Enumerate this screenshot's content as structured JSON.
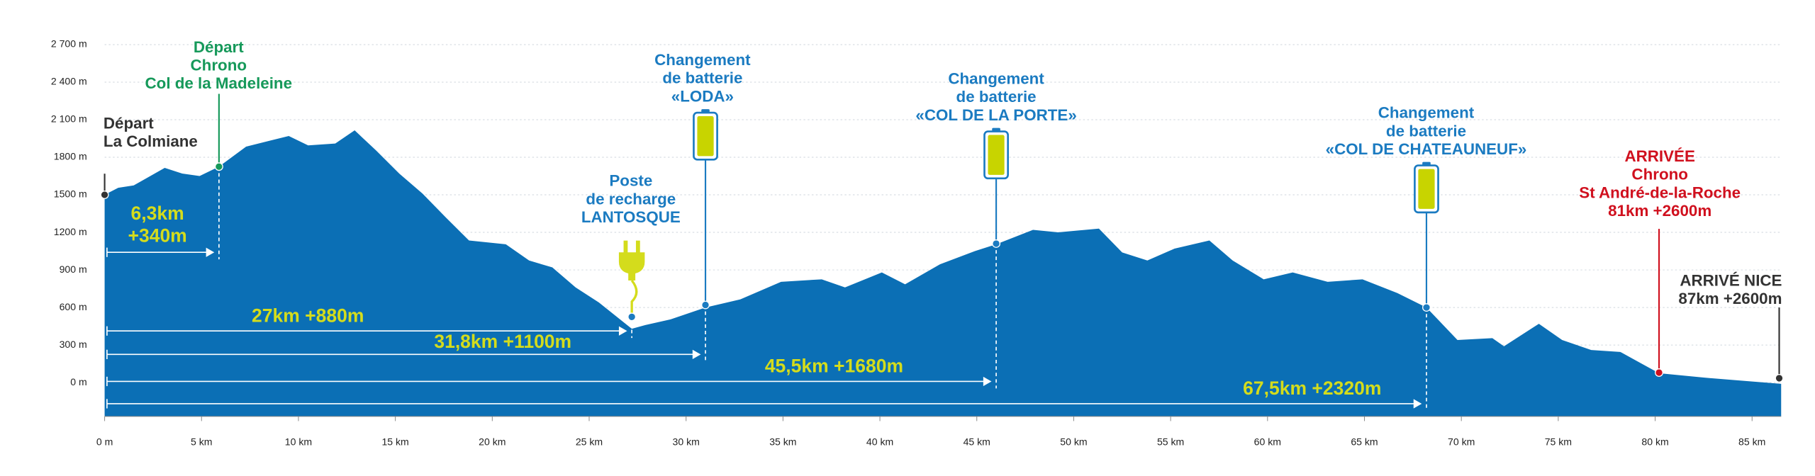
{
  "chart_data": {
    "type": "area",
    "x": [
      0,
      0.7,
      1.5,
      3.1,
      4,
      4.9,
      5.9,
      7.3,
      9.5,
      10.5,
      11.9,
      12.9,
      14,
      15.2,
      16.4,
      17.6,
      18.8,
      20.7,
      21.9,
      23.1,
      24.3,
      25.5,
      27.2,
      27.9,
      29.2,
      31,
      32.8,
      34.9,
      37,
      38.2,
      40.1,
      41.3,
      43.1,
      44.9,
      46,
      47.9,
      49.2,
      51.3,
      52.5,
      53.8,
      55.2,
      57,
      58.2,
      59.8,
      61.3,
      63.1,
      64.9,
      66.7,
      68.2,
      69.8,
      71.6,
      72.2,
      74,
      75.2,
      76.7,
      78.2,
      80.2,
      82.5,
      84.9,
      86.5
    ],
    "y": [
      1500,
      1556,
      1575,
      1715,
      1670,
      1650,
      1725,
      1885,
      1970,
      1895,
      1910,
      2015,
      1855,
      1670,
      1510,
      1320,
      1135,
      1105,
      975,
      920,
      760,
      640,
      430,
      460,
      505,
      600,
      665,
      805,
      825,
      760,
      880,
      785,
      945,
      1050,
      1105,
      1220,
      1200,
      1230,
      1040,
      975,
      1070,
      1135,
      975,
      825,
      880,
      805,
      825,
      715,
      600,
      340,
      355,
      290,
      470,
      340,
      260,
      245,
      75,
      40,
      10,
      -10
    ],
    "color": "#0b6fb5",
    "xlim": [
      0,
      86.5
    ],
    "ylim": [
      -270,
      2700
    ],
    "grid": true,
    "xticks": [
      {
        "value": 0,
        "label": "0 m"
      },
      {
        "value": 5,
        "label": "5 km"
      },
      {
        "value": 10,
        "label": "10 km"
      },
      {
        "value": 15,
        "label": "15 km"
      },
      {
        "value": 20,
        "label": "20 km"
      },
      {
        "value": 25,
        "label": "25 km"
      },
      {
        "value": 30,
        "label": "30 km"
      },
      {
        "value": 35,
        "label": "35 km"
      },
      {
        "value": 40,
        "label": "40 km"
      },
      {
        "value": 45,
        "label": "45 km"
      },
      {
        "value": 50,
        "label": "50 km"
      },
      {
        "value": 55,
        "label": "55 km"
      },
      {
        "value": 60,
        "label": "60 km"
      },
      {
        "value": 65,
        "label": "65 km"
      },
      {
        "value": 70,
        "label": "70 km"
      },
      {
        "value": 75,
        "label": "75 km"
      },
      {
        "value": 80,
        "label": "80 km"
      },
      {
        "value": 85,
        "label": "85 km"
      }
    ],
    "yticks": [
      {
        "value": 0,
        "label": "0 m"
      },
      {
        "value": 300,
        "label": "300 m"
      },
      {
        "value": 600,
        "label": "600 m"
      },
      {
        "value": 900,
        "label": "900 m"
      },
      {
        "value": 1200,
        "label": "1200 m"
      },
      {
        "value": 1500,
        "label": "1500 m"
      },
      {
        "value": 1800,
        "label": "1800 m"
      },
      {
        "value": 2100,
        "label": "2 100 m"
      },
      {
        "value": 2400,
        "label": "2 400 m"
      },
      {
        "value": 2700,
        "label": "2 700 m"
      }
    ],
    "markers": [
      {
        "label": [
          "Départ",
          "La Colmiane"
        ],
        "color": "#333333",
        "x": 0,
        "y": 1500
      },
      {
        "label": [
          "Départ",
          "Chrono",
          "Col de la Madeleine"
        ],
        "color": "#16995a",
        "x": 5.9,
        "y": 1725
      },
      {
        "label": [
          "Poste",
          "de recharge",
          "LANTOSQUE"
        ],
        "color": "#1b7bc1",
        "x": 27.2,
        "y": 525
      },
      {
        "label": [
          "Changement",
          "de batterie",
          "«LODA»"
        ],
        "color": "#1b7bc1",
        "x": 31,
        "y": 620
      },
      {
        "label": [
          "Changement",
          "de batterie",
          "«COL DE LA PORTE»"
        ],
        "color": "#1b7bc1",
        "x": 46,
        "y": 1110
      },
      {
        "label": [
          "Changement",
          "de batterie",
          "«COL DE CHATEAUNEUF»"
        ],
        "color": "#1b7bc1",
        "x": 68.2,
        "y": 600
      },
      {
        "label": [
          "ARRIVÉE",
          "Chrono",
          "St André-de-la-Roche",
          "81km +2600m"
        ],
        "color": "#d0101e",
        "x": 80.2,
        "y": 80
      },
      {
        "label": [
          "ARRIVÉ NICE",
          "87km +2600m"
        ],
        "color": "#333333",
        "x": 86.4,
        "y": 35
      }
    ],
    "distances": [
      [
        "6,3km",
        "+340m"
      ],
      [
        "27km +880m"
      ],
      [
        "31,8km +1100m"
      ],
      [
        "45,5km +1680m"
      ],
      [
        "67,5km +2320m"
      ]
    ]
  }
}
